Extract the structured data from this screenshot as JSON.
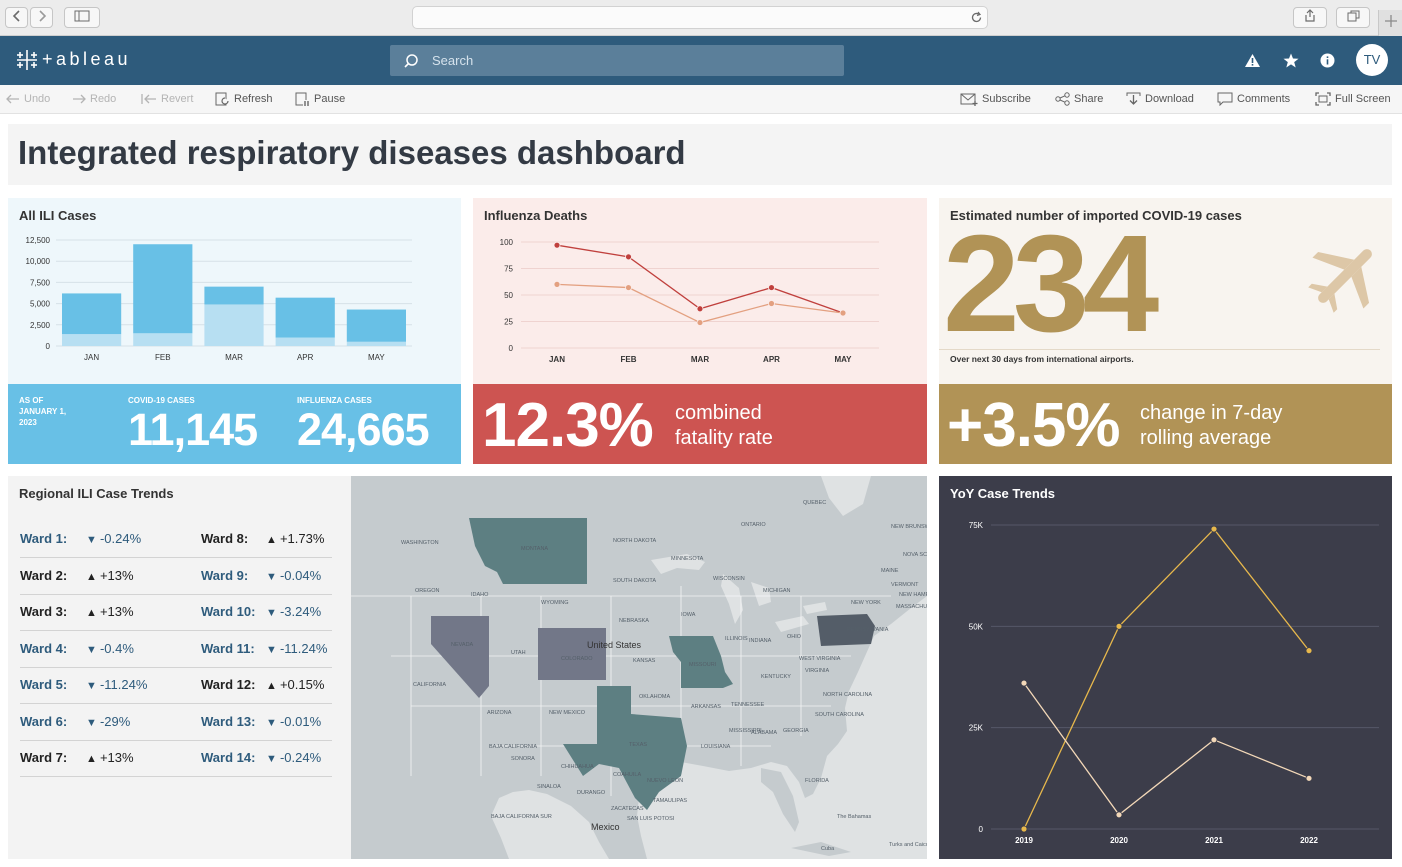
{
  "browser": {
    "back_icon": "chevron-left-icon",
    "forward_icon": "chevron-right-icon",
    "sidebar_icon": "sidebar-icon",
    "reload_icon": "reload-icon",
    "share_icon": "share-icon",
    "tabs_icon": "tabs-icon",
    "newtab_icon": "plus-icon"
  },
  "header": {
    "logo": "+ableau",
    "search_placeholder": "Search",
    "avatar": "TV",
    "icons": [
      "alert-icon",
      "star-icon",
      "info-icon"
    ]
  },
  "toolbar": {
    "undo": "Undo",
    "redo": "Redo",
    "revert": "Revert",
    "refresh": "Refresh",
    "pause": "Pause",
    "subscribe": "Subscribe",
    "share": "Share",
    "download": "Download",
    "comments": "Comments",
    "fullscreen": "Full Screen"
  },
  "dashboard": {
    "title": "Integrated respiratory diseases dashboard",
    "colors": {
      "blue": "#68c0e6",
      "light_blue": "#b7dff2",
      "red": "#cd5451",
      "gold": "#b19356",
      "dark": "#3c3d4a"
    }
  },
  "ili": {
    "title": "All ILI Cases",
    "as_of": "AS OF JANUARY 1, 2023",
    "covid_label": "COVID-19 CASES",
    "covid_value": "11,145",
    "flu_label": "INFLUENZA CASES",
    "flu_value": "24,665"
  },
  "deaths": {
    "title": "Influenza Deaths",
    "rate": "12.3%",
    "caption_l1": "combined",
    "caption_l2": "fatality rate"
  },
  "imported": {
    "title": "Estimated number of imported COVID-19 cases",
    "value": "234",
    "subtitle": "Over next 30 days from international airports.",
    "change": "+3.5%",
    "caption_l1": "change in 7-day",
    "caption_l2": "rolling average",
    "icon": "airplane-icon"
  },
  "regional": {
    "title": "Regional ILI Case Trends",
    "left": [
      {
        "label": "Ward 1:",
        "dir": "down",
        "value": "-0.24%"
      },
      {
        "label": "Ward 2:",
        "dir": "up",
        "value": "+13%"
      },
      {
        "label": "Ward 3:",
        "dir": "up",
        "value": "+13%"
      },
      {
        "label": "Ward 4:",
        "dir": "down",
        "value": "-0.4%"
      },
      {
        "label": "Ward 5:",
        "dir": "down",
        "value": "-11.24%"
      },
      {
        "label": "Ward 6:",
        "dir": "down",
        "value": "-29%"
      },
      {
        "label": "Ward 7:",
        "dir": "up",
        "value": "+13%"
      }
    ],
    "right": [
      {
        "label": "Ward 8:",
        "dir": "up",
        "value": "+1.73%"
      },
      {
        "label": "Ward 9:",
        "dir": "down",
        "value": "-0.04%"
      },
      {
        "label": "Ward 10:",
        "dir": "down",
        "value": "-3.24%"
      },
      {
        "label": "Ward 11:",
        "dir": "down",
        "value": "-11.24%"
      },
      {
        "label": "Ward 12:",
        "dir": "up",
        "value": "+0.15%"
      },
      {
        "label": "Ward 13:",
        "dir": "down",
        "value": "-0.01%"
      },
      {
        "label": "Ward 14:",
        "dir": "down",
        "value": "-0.24%"
      }
    ]
  },
  "map": {
    "country": "United States",
    "mexico": "Mexico",
    "labels": [
      "WASHINGTON",
      "MONTANA",
      "NORTH DAKOTA",
      "SOUTH DAKOTA",
      "MINNESOTA",
      "WISCONSIN",
      "MICHIGAN",
      "IDAHO",
      "WYOMING",
      "NEBRASKA",
      "IOWA",
      "OREGON",
      "NEVADA",
      "UTAH",
      "COLORADO",
      "KANSAS",
      "MISSOURI",
      "ILLINOIS",
      "INDIANA",
      "OHIO",
      "PENNSYLVANIA",
      "NEW YORK",
      "CALIFORNIA",
      "ARIZONA",
      "NEW MEXICO",
      "OKLAHOMA",
      "ARKANSAS",
      "TENNESSEE",
      "TEXAS",
      "LOUISIANA",
      "MISSISSIPPI",
      "ALABAMA",
      "GEORGIA",
      "FLORIDA",
      "KENTUCKY",
      "VIRGINIA",
      "WEST VIRGINIA",
      "NORTH CAROLINA",
      "SOUTH CAROLINA",
      "MAINE",
      "VERMONT",
      "NEW HAMPSHIRE",
      "MASSACHUSETTS",
      "BAJA CALIFORNIA",
      "SONORA",
      "CHIHUAHUA",
      "COAHUILA",
      "NUEVO LEON",
      "DURANGO",
      "SINALOA",
      "BAJA CALIFORNIA SUR",
      "TAMAULIPAS",
      "ZACATECAS",
      "SAN LUIS POTOSI",
      "The Bahamas",
      "Turks and Caicos Islands",
      "Cuba",
      "QUEBEC",
      "ONTARIO",
      "NEW BRUNSWICK",
      "NOVA SCOTIA"
    ]
  },
  "chart_data": [
    {
      "type": "bar",
      "title": "All ILI Cases",
      "categories": [
        "JAN",
        "FEB",
        "MAR",
        "APR",
        "MAY"
      ],
      "series": [
        {
          "name": "",
          "values": [
            1400,
            1500,
            4900,
            1000,
            500
          ]
        },
        {
          "name": "",
          "values": [
            4800,
            10500,
            2100,
            4700,
            3800
          ]
        }
      ],
      "stacked": true,
      "ylim": [
        0,
        12500
      ],
      "yticks": [
        "0",
        "2,500",
        "5,000",
        "7,500",
        "10,000",
        "12,500"
      ],
      "grid": true
    },
    {
      "type": "line",
      "title": "Influenza Deaths",
      "categories": [
        "JAN",
        "FEB",
        "MAR",
        "APR",
        "MAY"
      ],
      "series": [
        {
          "name": "",
          "values": [
            97,
            86,
            37,
            57,
            33
          ],
          "color": "#c0403d"
        },
        {
          "name": "",
          "values": [
            60,
            57,
            24,
            42,
            33
          ],
          "color": "#e3a080"
        }
      ],
      "ylim": [
        0,
        100
      ],
      "yticks": [
        "0",
        "25",
        "50",
        "75",
        "100"
      ],
      "grid": true
    },
    {
      "type": "line",
      "title": "YoY Case Trends",
      "categories": [
        "2019",
        "2020",
        "2021",
        "2022"
      ],
      "series": [
        {
          "name": "",
          "values": [
            0,
            50000,
            74000,
            44000
          ],
          "color": "#e7b84c"
        },
        {
          "name": "",
          "values": [
            36000,
            3500,
            22000,
            12500
          ],
          "color": "#f3d8b8"
        }
      ],
      "ylim": [
        0,
        75000
      ],
      "yticks": [
        "0",
        "25K",
        "50K",
        "75K"
      ],
      "grid": true
    }
  ]
}
